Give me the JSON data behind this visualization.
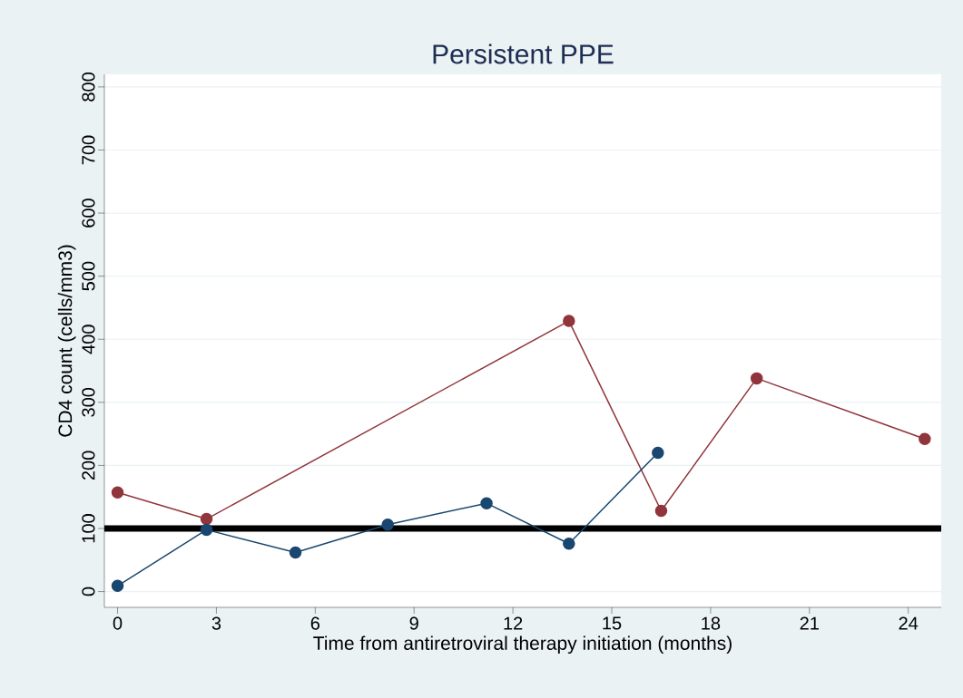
{
  "chart_data": {
    "type": "line",
    "title": "Persistent PPE",
    "xlabel": "Time from antiretroviral therapy initiation (months)",
    "ylabel": "CD4 count (cells/mm3)",
    "series": [
      {
        "color": "#90353b",
        "x": [
          0,
          2.7,
          13.7,
          16.5,
          19.4,
          24.5
        ],
        "values": [
          157,
          115,
          429,
          128,
          338,
          242
        ]
      },
      {
        "color": "#1a476f",
        "x": [
          0,
          2.7,
          5.4,
          8.2,
          11.2,
          13.7,
          16.4
        ],
        "values": [
          9,
          98,
          62,
          106,
          140,
          76,
          220
        ]
      }
    ],
    "xlim": [
      -0.4,
      25
    ],
    "ylim": [
      -25,
      820
    ],
    "xticks": [
      0,
      3,
      6,
      9,
      12,
      15,
      18,
      21,
      24
    ],
    "yticks": [
      0,
      100,
      200,
      300,
      400,
      500,
      600,
      700,
      800
    ],
    "ref_lines": [
      {
        "axis": "y",
        "value": 100,
        "color": "#000000"
      }
    ],
    "grid": "y",
    "marker": "circle",
    "line_style": "solid"
  }
}
